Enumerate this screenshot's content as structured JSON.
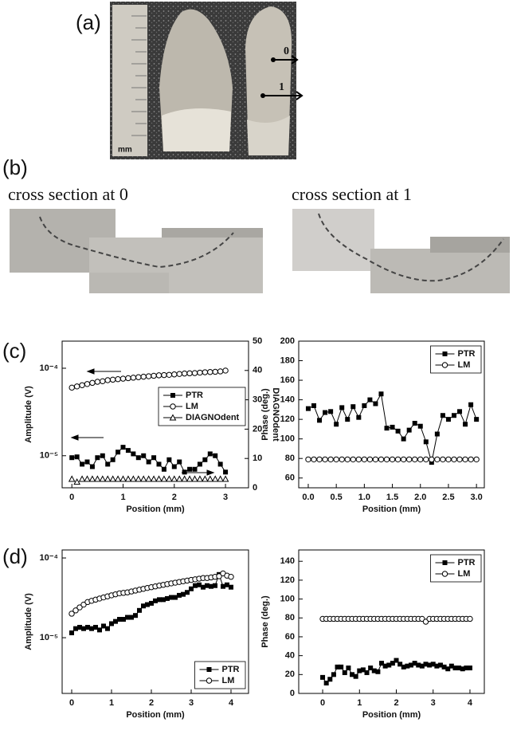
{
  "figure": {
    "panel_a": "(a)",
    "panel_b": "(b)",
    "panel_c": "(c)",
    "panel_d": "(d)",
    "scale_unit": "mm",
    "line_0": "0",
    "line_1": "1",
    "section_0": "cross section at 0",
    "section_1": "cross section at 1"
  },
  "chart_data": [
    {
      "type": "line",
      "xlabel": "Position (mm)",
      "ylabel": "Amplitude (V)",
      "y2label": "DIAGNOdent",
      "ylog": true,
      "legend": "center right",
      "xlim": [
        -0.19,
        3.45
      ],
      "xticks": [
        0,
        1,
        2,
        3
      ],
      "ylim": [
        4.3e-06,
        0.000204
      ],
      "yticks": [
        {
          "value": 1e-05,
          "label": "10⁻⁵"
        },
        {
          "value": 0.0001,
          "label": "10⁻⁴"
        }
      ],
      "y2lim": [
        0,
        50
      ],
      "y2ticks": [
        0,
        10,
        20,
        30,
        40,
        50
      ],
      "x": [
        0,
        0.1,
        0.2,
        0.3,
        0.4,
        0.5,
        0.6,
        0.7,
        0.8,
        0.9,
        1,
        1.1,
        1.2,
        1.3,
        1.4,
        1.5,
        1.6,
        1.7,
        1.8,
        1.9,
        2,
        2.1,
        2.2,
        2.3,
        2.4,
        2.5,
        2.6,
        2.7,
        2.8,
        2.9,
        3
      ],
      "series": [
        {
          "name": "PTR",
          "color": "#000000",
          "marker": "square-filled",
          "linestyle": "solid",
          "values": [
            9.5e-06,
            9.7e-06,
            8e-06,
            8.5e-06,
            7.5e-06,
            9.5e-06,
            1e-05,
            8e-06,
            9e-06,
            1.1e-05,
            1.25e-05,
            1.15e-05,
            1.05e-05,
            9.5e-06,
            1e-05,
            8.5e-06,
            9.5e-06,
            8e-06,
            7e-06,
            9e-06,
            7.5e-06,
            8.5e-06,
            6.5e-06,
            7e-06,
            7e-06,
            8e-06,
            9e-06,
            1.05e-05,
            1e-05,
            8e-06,
            6.5e-06
          ]
        },
        {
          "name": "LM",
          "color": "#000000",
          "marker": "circle-open",
          "linestyle": "none",
          "values": [
            6e-05,
            6.2e-05,
            6.4e-05,
            6.6e-05,
            6.8e-05,
            7e-05,
            7.1e-05,
            7.3e-05,
            7.4e-05,
            7.5e-05,
            7.6e-05,
            7.7e-05,
            7.8e-05,
            7.9e-05,
            8e-05,
            8.1e-05,
            8.2e-05,
            8.3e-05,
            8.35e-05,
            8.4e-05,
            8.5e-05,
            8.6e-05,
            8.7e-05,
            8.75e-05,
            8.8e-05,
            8.9e-05,
            9e-05,
            9.05e-05,
            9.1e-05,
            9.2e-05,
            9.4e-05
          ]
        },
        {
          "name": "DIAGNOdent",
          "color": "#000000",
          "marker": "triangle-open",
          "linestyle": "none",
          "axis": "y2",
          "values": [
            3,
            2,
            3,
            3,
            3,
            3,
            3,
            3,
            3,
            3,
            3,
            3,
            3,
            3,
            3,
            3,
            3,
            3,
            3,
            3,
            3,
            3,
            3,
            3,
            3,
            3,
            3,
            3,
            3,
            3,
            3
          ]
        }
      ]
    },
    {
      "type": "line",
      "xlabel": "Position (mm)",
      "ylabel": "Phase (deg.)",
      "ylog": false,
      "legend": "upper right",
      "xlim": [
        -0.17,
        3.14
      ],
      "xticks": [
        {
          "value": 0,
          "label": "0.0"
        },
        0.5,
        {
          "value": 1,
          "label": "1.0"
        },
        1.5,
        {
          "value": 2,
          "label": "2.0"
        },
        2.5,
        {
          "value": 3,
          "label": "3.0"
        }
      ],
      "ylim": [
        50,
        200
      ],
      "yticks": [
        60,
        80,
        100,
        120,
        140,
        160,
        180,
        200
      ],
      "x": [
        0,
        0.1,
        0.2,
        0.3,
        0.4,
        0.5,
        0.6,
        0.7,
        0.8,
        0.9,
        1,
        1.1,
        1.2,
        1.3,
        1.4,
        1.5,
        1.6,
        1.7,
        1.8,
        1.9,
        2,
        2.1,
        2.2,
        2.3,
        2.4,
        2.5,
        2.6,
        2.7,
        2.8,
        2.9,
        3
      ],
      "series": [
        {
          "name": "PTR",
          "color": "#000000",
          "marker": "square-filled",
          "linestyle": "solid",
          "values": [
            131,
            134,
            119,
            127,
            128,
            115,
            132,
            120,
            133,
            122,
            134,
            140,
            136,
            146,
            111,
            112,
            108,
            100,
            109,
            116,
            113,
            97,
            76,
            105,
            124,
            120,
            124,
            128,
            115,
            135,
            120
          ]
        },
        {
          "name": "LM",
          "color": "#000000",
          "marker": "circle-open",
          "linestyle": "none",
          "values": [
            79,
            79,
            79,
            79,
            79,
            79,
            79,
            79,
            79,
            79,
            79,
            79,
            79,
            79,
            79,
            79,
            79,
            79,
            79,
            79,
            79,
            79,
            79,
            79,
            79,
            79,
            79,
            79,
            79,
            79,
            79
          ]
        }
      ]
    },
    {
      "type": "line",
      "xlabel": "Position (mm)",
      "ylabel": "Amplitude (V)",
      "ylog": true,
      "legend": "lower right",
      "xlim": [
        -0.24,
        4.44
      ],
      "xticks": [
        0,
        1,
        2,
        3,
        4
      ],
      "ylim": [
        2e-06,
        0.000126
      ],
      "yticks": [
        {
          "value": 1e-05,
          "label": "10⁻⁵"
        },
        {
          "value": 0.0001,
          "label": "10⁻⁴"
        }
      ],
      "x": [
        0,
        0.1,
        0.2,
        0.3,
        0.4,
        0.5,
        0.6,
        0.7,
        0.8,
        0.9,
        1,
        1.1,
        1.2,
        1.3,
        1.4,
        1.5,
        1.6,
        1.7,
        1.8,
        1.9,
        2,
        2.1,
        2.2,
        2.3,
        2.4,
        2.5,
        2.6,
        2.7,
        2.8,
        2.9,
        3,
        3.1,
        3.2,
        3.3,
        3.4,
        3.5,
        3.6,
        3.7,
        3.8,
        3.9,
        4
      ],
      "series": [
        {
          "name": "PTR",
          "color": "#000000",
          "marker": "square-filled",
          "linestyle": "solid",
          "values": [
            1.15e-05,
            1.3e-05,
            1.35e-05,
            1.3e-05,
            1.35e-05,
            1.3e-05,
            1.35e-05,
            1.25e-05,
            1.4e-05,
            1.3e-05,
            1.5e-05,
            1.6e-05,
            1.7e-05,
            1.7e-05,
            1.8e-05,
            1.8e-05,
            1.9e-05,
            2.2e-05,
            2.5e-05,
            2.6e-05,
            2.7e-05,
            2.9e-05,
            3e-05,
            3e-05,
            3.1e-05,
            3.2e-05,
            3.2e-05,
            3.4e-05,
            3.5e-05,
            3.7e-05,
            4.1e-05,
            4.5e-05,
            4.6e-05,
            4.3e-05,
            4.5e-05,
            4.4e-05,
            4.5e-05,
            6.2e-05,
            4.4e-05,
            4.6e-05,
            4.3e-05
          ]
        },
        {
          "name": "LM",
          "color": "#000000",
          "marker": "circle-open",
          "linestyle": "none",
          "values": [
            2e-05,
            2.2e-05,
            2.4e-05,
            2.6e-05,
            2.8e-05,
            2.9e-05,
            3e-05,
            3.1e-05,
            3.2e-05,
            3.3e-05,
            3.4e-05,
            3.5e-05,
            3.6e-05,
            3.65e-05,
            3.7e-05,
            3.8e-05,
            3.9e-05,
            4e-05,
            4.1e-05,
            4.2e-05,
            4.3e-05,
            4.4e-05,
            4.5e-05,
            4.6e-05,
            4.7e-05,
            4.8e-05,
            4.9e-05,
            5e-05,
            5.1e-05,
            5.2e-05,
            5.3e-05,
            5.4e-05,
            5.5e-05,
            5.6e-05,
            5.6e-05,
            5.7e-05,
            5.8e-05,
            5.9e-05,
            6.4e-05,
            6e-05,
            5.8e-05
          ]
        }
      ]
    },
    {
      "type": "line",
      "xlabel": "Position (mm)",
      "ylabel": "Phase (deg.)",
      "ylog": false,
      "legend": "upper right",
      "xlim": [
        -0.65,
        4.39
      ],
      "xticks": [
        0,
        1,
        2,
        3,
        4
      ],
      "ylim": [
        0,
        152
      ],
      "yticks": [
        0,
        20,
        40,
        60,
        80,
        100,
        120,
        140
      ],
      "x": [
        0,
        0.1,
        0.2,
        0.3,
        0.4,
        0.5,
        0.6,
        0.7,
        0.8,
        0.9,
        1,
        1.1,
        1.2,
        1.3,
        1.4,
        1.5,
        1.6,
        1.7,
        1.8,
        1.9,
        2,
        2.1,
        2.2,
        2.3,
        2.4,
        2.5,
        2.6,
        2.7,
        2.8,
        2.9,
        3,
        3.1,
        3.2,
        3.3,
        3.4,
        3.5,
        3.6,
        3.7,
        3.8,
        3.9,
        4
      ],
      "series": [
        {
          "name": "PTR",
          "color": "#000000",
          "marker": "square-filled",
          "linestyle": "solid",
          "values": [
            17,
            11,
            15,
            20,
            28,
            28,
            22,
            27,
            20,
            18,
            24,
            25,
            22,
            27,
            24,
            23,
            32,
            29,
            30,
            32,
            35,
            31,
            28,
            29,
            30,
            32,
            30,
            29,
            31,
            30,
            31,
            29,
            30,
            28,
            26,
            29,
            27,
            27,
            26,
            27,
            27
          ]
        },
        {
          "name": "LM",
          "color": "#000000",
          "marker": "circle-open",
          "linestyle": "none",
          "values": [
            79,
            79,
            79,
            79,
            79,
            79,
            79,
            79,
            79,
            79,
            79,
            79,
            79,
            79,
            79,
            79,
            79,
            79,
            79,
            79,
            79,
            79,
            79,
            79,
            79,
            79,
            79,
            79,
            76,
            79,
            79,
            79,
            79,
            79,
            79,
            79,
            79,
            79,
            79,
            79,
            79
          ]
        }
      ]
    }
  ]
}
